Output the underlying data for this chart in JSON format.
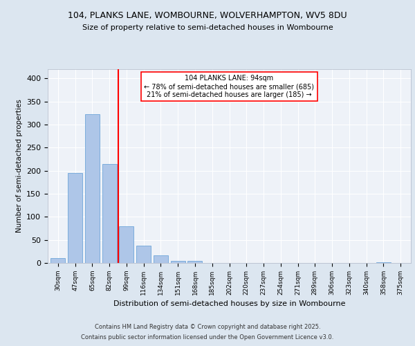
{
  "title1": "104, PLANKS LANE, WOMBOURNE, WOLVERHAMPTON, WV5 8DU",
  "title2": "Size of property relative to semi-detached houses in Wombourne",
  "xlabel": "Distribution of semi-detached houses by size in Wombourne",
  "ylabel": "Number of semi-detached properties",
  "categories": [
    "30sqm",
    "47sqm",
    "65sqm",
    "82sqm",
    "99sqm",
    "116sqm",
    "134sqm",
    "151sqm",
    "168sqm",
    "185sqm",
    "202sqm",
    "220sqm",
    "237sqm",
    "254sqm",
    "271sqm",
    "289sqm",
    "306sqm",
    "323sqm",
    "340sqm",
    "358sqm",
    "375sqm"
  ],
  "values": [
    10,
    195,
    322,
    214,
    79,
    38,
    16,
    4,
    5,
    0,
    0,
    0,
    0,
    0,
    0,
    0,
    0,
    0,
    0,
    1,
    0
  ],
  "bar_color": "#aec6e8",
  "bar_edge_color": "#5b9bd5",
  "red_line_x": 3.5,
  "annotation_title": "104 PLANKS LANE: 94sqm",
  "annotation_line1": "← 78% of semi-detached houses are smaller (685)",
  "annotation_line2": "21% of semi-detached houses are larger (185) →",
  "footer1": "Contains HM Land Registry data © Crown copyright and database right 2025.",
  "footer2": "Contains public sector information licensed under the Open Government Licence v3.0.",
  "ylim": [
    0,
    420
  ],
  "bg_color": "#dce6f0",
  "plot_bg_color": "#eef2f8",
  "grid_color": "#ffffff"
}
